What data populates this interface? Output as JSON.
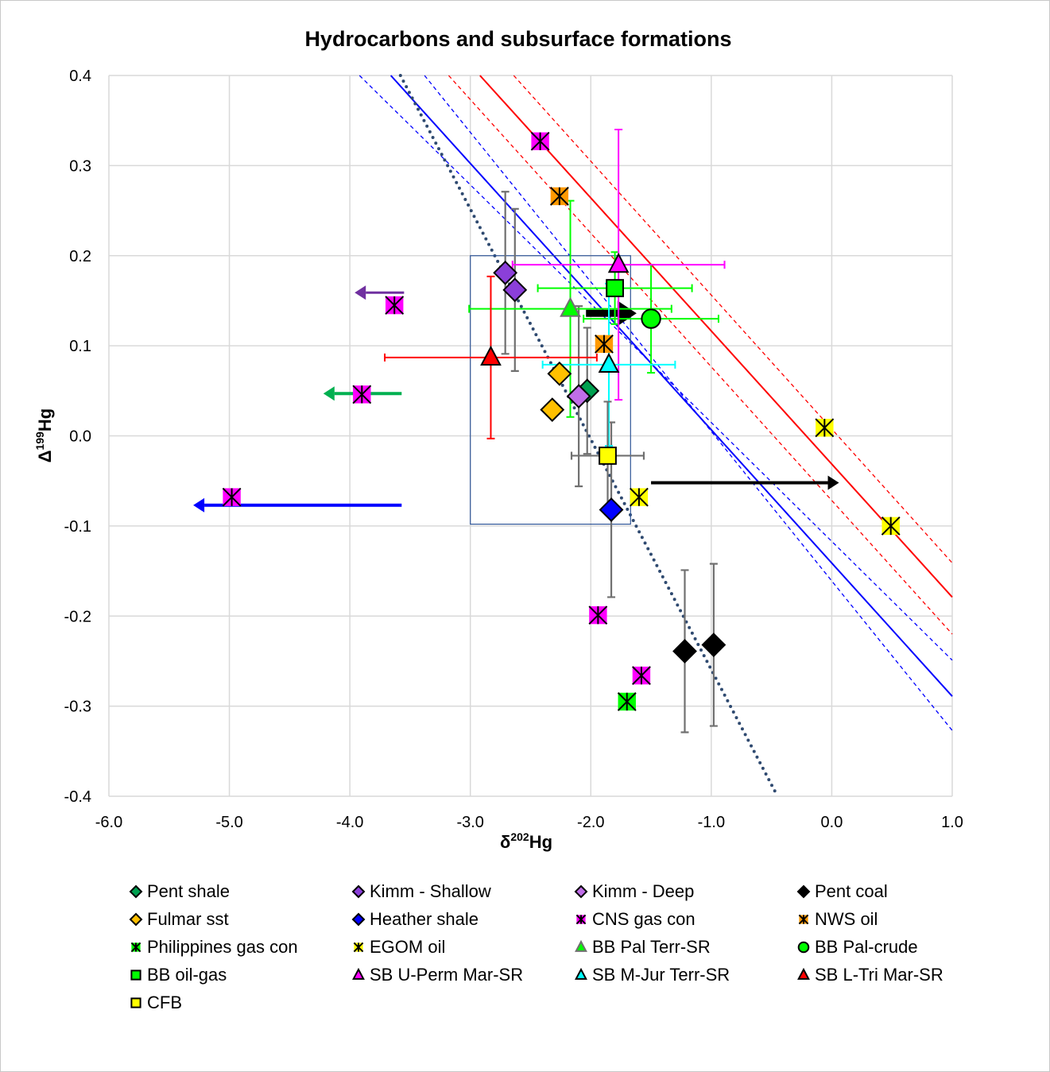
{
  "chart_data": {
    "type": "scatter",
    "title": "Hydrocarbons and subsurface formations",
    "xlabel": "δ202Hg",
    "xlabel_base": "δ",
    "xlabel_sup": "202",
    "xlabel_rest": "Hg",
    "ylabel_base": "Δ",
    "ylabel_sup": "199",
    "ylabel_rest": "Hg",
    "xlim": [
      -6,
      1
    ],
    "ylim": [
      -0.4,
      0.4
    ],
    "xticks": [
      "-6.0",
      "-5.0",
      "-4.0",
      "-3.0",
      "-2.0",
      "-1.0",
      "0.0",
      "1.0"
    ],
    "yticks": [
      "0.4",
      "0.3",
      "0.2",
      "0.1",
      "0.0",
      "-0.1",
      "-0.2",
      "-0.3",
      "-0.4"
    ],
    "grid": true,
    "legend_position": "bottom",
    "series": [
      {
        "name": "Pent shale",
        "marker": "diamond",
        "color": "#00A050",
        "ecolor": "#707070",
        "points": [
          [
            -2.03,
            0.05,
            0,
            0.07
          ]
        ]
      },
      {
        "name": "Kimm - Shallow",
        "marker": "diamond",
        "color": "#8B3FD9",
        "ecolor": "#707070",
        "points": [
          [
            -2.71,
            0.181,
            0,
            0.09
          ],
          [
            -2.63,
            0.162,
            0,
            0.09
          ]
        ]
      },
      {
        "name": "Kimm - Deep",
        "marker": "diamond",
        "color": "#C06EE8",
        "ecolor": "#707070",
        "points": [
          [
            -2.1,
            0.044,
            0,
            0.1
          ]
        ]
      },
      {
        "name": "Pent coal",
        "marker": "diamond",
        "color": "#000000",
        "ecolor": "#707070",
        "points": [
          [
            -1.22,
            -0.239,
            0,
            0.09
          ],
          [
            -0.98,
            -0.232,
            0,
            0.09
          ]
        ]
      },
      {
        "name": "Fulmar sst",
        "marker": "diamond",
        "color": "#FFC000",
        "ecolor": "#707070",
        "points": [
          [
            -2.26,
            0.069,
            0,
            0
          ],
          [
            -2.32,
            0.029,
            0,
            0
          ]
        ]
      },
      {
        "name": "Heather shale",
        "marker": "diamond",
        "color": "#0000FF",
        "ecolor": "#707070",
        "points": [
          [
            -1.83,
            -0.082,
            0,
            0.097
          ]
        ]
      },
      {
        "name": "CNS gas con",
        "marker": "squarex",
        "color": "#FF00FF",
        "ecolor": "#707070",
        "points": [
          [
            -2.42,
            0.327,
            0,
            0
          ],
          [
            -3.63,
            0.145,
            0,
            0
          ],
          [
            -3.9,
            0.046,
            0,
            0
          ],
          [
            -4.98,
            -0.068,
            0,
            0
          ],
          [
            -1.94,
            -0.199,
            0,
            0
          ],
          [
            -1.58,
            -0.266,
            0,
            0
          ]
        ]
      },
      {
        "name": "NWS oil",
        "marker": "squarex",
        "color": "#FF9900",
        "ecolor": "#707070",
        "points": [
          [
            -2.26,
            0.266,
            0,
            0
          ],
          [
            -1.89,
            0.102,
            0,
            0
          ]
        ]
      },
      {
        "name": "Philippines gas con",
        "marker": "squarex",
        "color": "#00FF00",
        "ecolor": "#707070",
        "points": [
          [
            -1.7,
            -0.295,
            0,
            0
          ]
        ]
      },
      {
        "name": "EGOM oil",
        "marker": "squarex",
        "color": "#FFFF00",
        "ecolor": "#707070",
        "points": [
          [
            -0.06,
            0.009,
            0,
            0
          ],
          [
            0.49,
            -0.1,
            0,
            0
          ],
          [
            -1.6,
            -0.068,
            0,
            0
          ]
        ]
      },
      {
        "name": "BB Pal Terr-SR",
        "marker": "triangle",
        "color": "#00FF00",
        "ecolor": "#00FF00",
        "points": [
          [
            -2.17,
            0.141,
            0.84,
            0.12
          ]
        ]
      },
      {
        "name": "BB Pal-crude",
        "marker": "circle",
        "color": "#00FF00",
        "ecolor": "#00FF00",
        "points": [
          [
            -1.5,
            0.13,
            0.56,
            0.06
          ]
        ]
      },
      {
        "name": "BB oil-gas",
        "marker": "square",
        "color": "#00FF00",
        "ecolor": "#00FF00",
        "points": [
          [
            -1.8,
            0.164,
            0.64,
            0.04
          ]
        ]
      },
      {
        "name": "SB U-Perm Mar-SR",
        "marker": "triangle",
        "color": "#FF00FF",
        "ecolor": "#FF00FF",
        "points": [
          [
            -1.77,
            0.19,
            0.88,
            0.15
          ]
        ]
      },
      {
        "name": "SB M-Jur Terr-SR",
        "marker": "triangle",
        "color": "#00FFFF",
        "ecolor": "#00FFFF",
        "points": [
          [
            -1.85,
            0.079,
            0.55,
            0.09
          ]
        ]
      },
      {
        "name": "SB L-Tri Mar-SR",
        "marker": "triangle",
        "color": "#FF0000",
        "ecolor": "#FF0000",
        "points": [
          [
            -2.83,
            0.087,
            0.88,
            0.09
          ]
        ]
      },
      {
        "name": "CFB",
        "marker": "square",
        "color": "#FFFF00",
        "ecolor": "#707070",
        "points": [
          [
            -1.86,
            -0.022,
            0.3,
            0.06
          ]
        ]
      }
    ],
    "lines": [
      {
        "color": "#0000FF",
        "style": "solid",
        "from": [
          -3.66,
          0.4
        ],
        "to": [
          1,
          -0.289
        ]
      },
      {
        "color": "#0000FF",
        "style": "dashed",
        "from": [
          -3.92,
          0.4
        ],
        "to": [
          1,
          -0.249
        ]
      },
      {
        "color": "#0000FF",
        "style": "dashed",
        "from": [
          -3.38,
          0.4
        ],
        "to": [
          1,
          -0.327
        ]
      },
      {
        "color": "#FF0000",
        "style": "solid",
        "from": [
          -2.92,
          0.4
        ],
        "to": [
          1,
          -0.179
        ]
      },
      {
        "color": "#FF0000",
        "style": "dashed",
        "from": [
          -3.18,
          0.4
        ],
        "to": [
          1,
          -0.22
        ]
      },
      {
        "color": "#FF0000",
        "style": "dashed",
        "from": [
          -2.64,
          0.4
        ],
        "to": [
          1,
          -0.141
        ]
      },
      {
        "color": "#2F4A70",
        "style": "dotted",
        "from": [
          -3.58,
          0.4
        ],
        "to": [
          -0.45,
          -0.4
        ]
      }
    ],
    "box": {
      "x": [
        -3.0,
        -1.67
      ],
      "y": [
        -0.098,
        0.2
      ],
      "color": "#2F5597"
    },
    "arrows": [
      {
        "color": "#7030A0",
        "from": [
          -3.55,
          0.159
        ],
        "to": [
          -3.96,
          0.159
        ],
        "width": 3
      },
      {
        "color": "#00B050",
        "from": [
          -3.57,
          0.047
        ],
        "to": [
          -4.22,
          0.047
        ],
        "width": 4
      },
      {
        "color": "#0000FF",
        "from": [
          -3.57,
          -0.077
        ],
        "to": [
          -5.3,
          -0.077
        ],
        "width": 4
      },
      {
        "color": "#000000",
        "from": [
          -2.04,
          0.136
        ],
        "to": [
          -1.62,
          0.136
        ],
        "width": 9
      },
      {
        "color": "#000000",
        "from": [
          -1.5,
          -0.052
        ],
        "to": [
          0.06,
          -0.052
        ],
        "width": 4
      }
    ]
  }
}
